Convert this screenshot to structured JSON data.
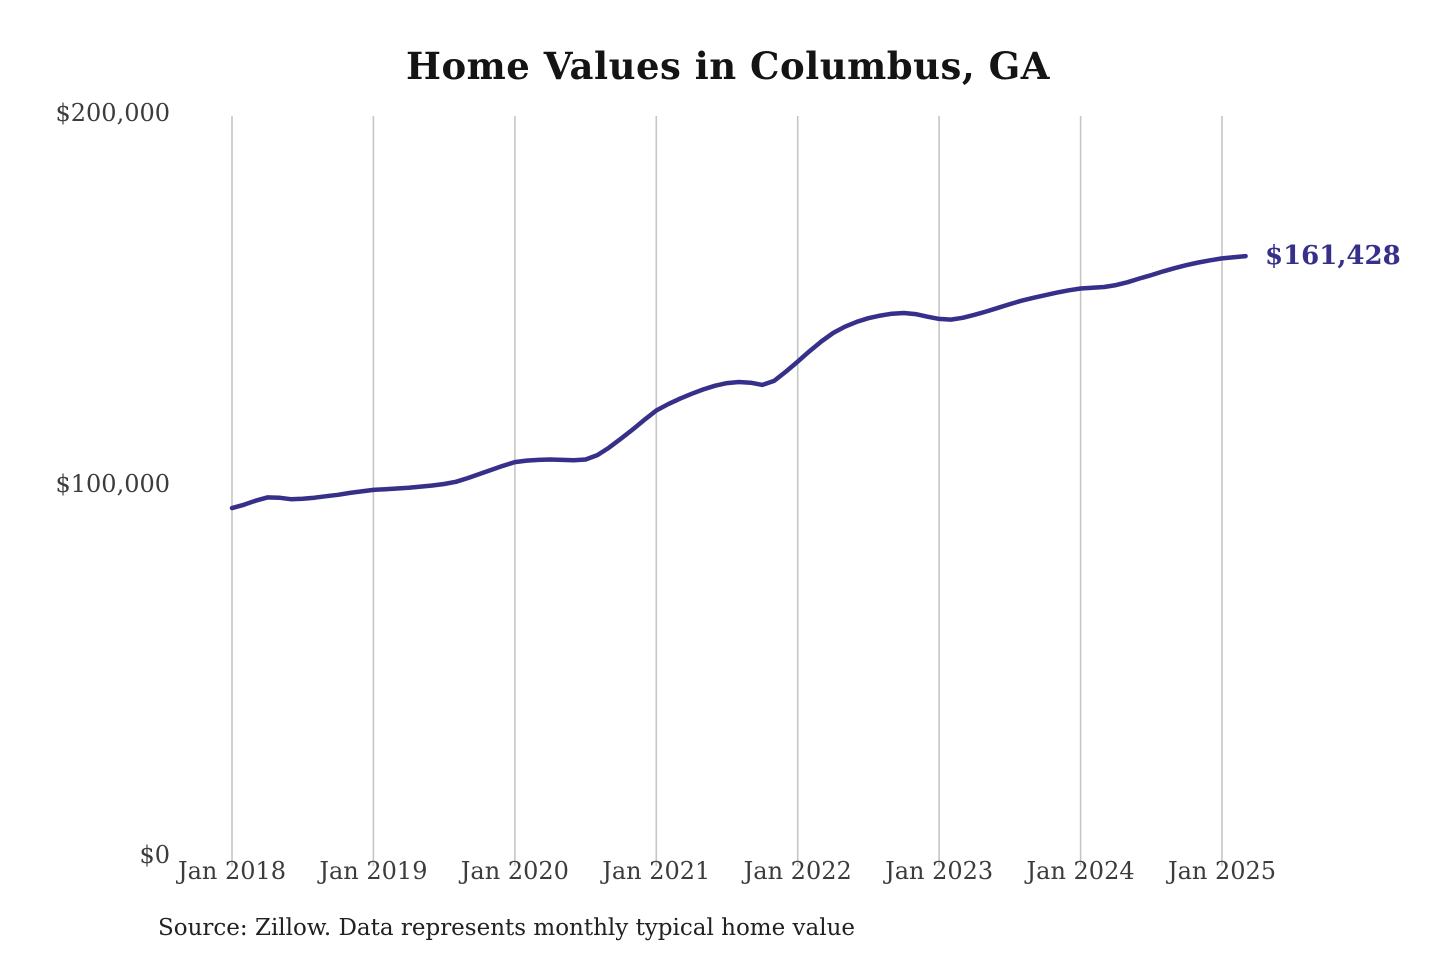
{
  "page": {
    "title": "Home Values in Columbus, GA",
    "source_note": "Source: Zillow. Data represents monthly typical home value"
  },
  "chart_data": {
    "type": "line",
    "title": "Home Values in Columbus, GA",
    "series_name": "Monthly typical home value",
    "unit": "USD",
    "grid": "vertical-only",
    "legend": "none",
    "ylim": [
      0,
      200000
    ],
    "y_tick_labels": [
      "$200,000",
      "$100,000",
      "$0"
    ],
    "y_tick_values": [
      200000,
      100000,
      0
    ],
    "x_tick_labels": [
      "Jan 2018",
      "Jan 2019",
      "Jan 2020",
      "Jan 2021",
      "Jan 2022",
      "Jan 2023",
      "Jan 2024",
      "Jan 2025"
    ],
    "end_label": "$161,428",
    "last_value": 161428,
    "x": [
      "2018-01",
      "2018-02",
      "2018-03",
      "2018-04",
      "2018-05",
      "2018-06",
      "2018-07",
      "2018-08",
      "2018-09",
      "2018-10",
      "2018-11",
      "2018-12",
      "2019-01",
      "2019-02",
      "2019-03",
      "2019-04",
      "2019-05",
      "2019-06",
      "2019-07",
      "2019-08",
      "2019-09",
      "2019-10",
      "2019-11",
      "2019-12",
      "2020-01",
      "2020-02",
      "2020-03",
      "2020-04",
      "2020-05",
      "2020-06",
      "2020-07",
      "2020-08",
      "2020-09",
      "2020-10",
      "2020-11",
      "2020-12",
      "2021-01",
      "2021-02",
      "2021-03",
      "2021-04",
      "2021-05",
      "2021-06",
      "2021-07",
      "2021-08",
      "2021-09",
      "2021-10",
      "2021-11",
      "2021-12",
      "2022-01",
      "2022-02",
      "2022-03",
      "2022-04",
      "2022-05",
      "2022-06",
      "2022-07",
      "2022-08",
      "2022-09",
      "2022-10",
      "2022-11",
      "2022-12",
      "2023-01",
      "2023-02",
      "2023-03",
      "2023-04",
      "2023-05",
      "2023-06",
      "2023-07",
      "2023-08",
      "2023-09",
      "2023-10",
      "2023-11",
      "2023-12",
      "2024-01",
      "2024-02",
      "2024-03",
      "2024-04",
      "2024-05",
      "2024-06",
      "2024-07",
      "2024-08",
      "2024-09",
      "2024-10",
      "2024-11",
      "2024-12",
      "2025-01",
      "2025-02",
      "2025-03"
    ],
    "values": [
      93500,
      94400,
      95500,
      96400,
      96300,
      95900,
      96000,
      96300,
      96700,
      97100,
      97600,
      98000,
      98400,
      98600,
      98800,
      99000,
      99300,
      99600,
      100000,
      100600,
      101600,
      102700,
      103800,
      104900,
      105900,
      106300,
      106500,
      106600,
      106500,
      106400,
      106600,
      107800,
      109800,
      112200,
      114700,
      117300,
      119800,
      121500,
      123000,
      124300,
      125500,
      126500,
      127200,
      127500,
      127300,
      126700,
      127800,
      130300,
      133000,
      135800,
      138400,
      140700,
      142400,
      143700,
      144700,
      145400,
      145900,
      146100,
      145800,
      145100,
      144500,
      144300,
      144800,
      145600,
      146500,
      147500,
      148500,
      149400,
      150200,
      150900,
      151600,
      152200,
      152700,
      152900,
      153100,
      153600,
      154400,
      155400,
      156300,
      157300,
      158200,
      159000,
      159700,
      160300,
      160800,
      161100,
      161428
    ],
    "colors": {
      "line": "#37308a",
      "end_label": "#37308a",
      "grid": "#c6c6c6",
      "axis_text": "#3c3c3c",
      "title": "#141414",
      "background": "#ffffff"
    }
  }
}
